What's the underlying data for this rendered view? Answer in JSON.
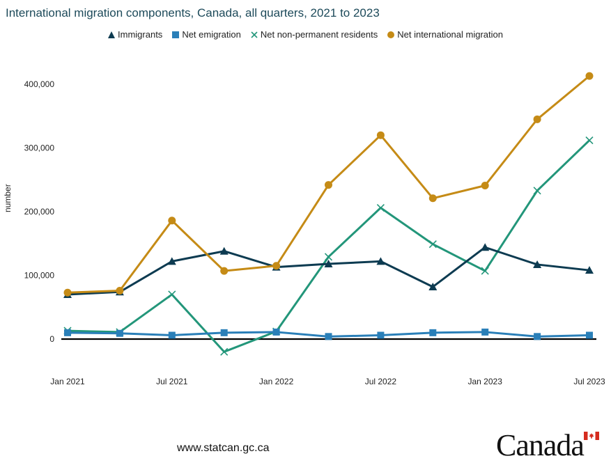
{
  "title": "International migration components, Canada, all quarters, 2021 to 2023",
  "footer": {
    "url": "www.statcan.gc.ca",
    "wordmark": "Canada"
  },
  "chart_data": {
    "type": "line",
    "title": "International migration components, Canada, all quarters, 2021 to 2023",
    "ylabel": "number",
    "xlabel": "",
    "ylim": [
      -30000,
      450000
    ],
    "yticks": [
      0,
      100000,
      200000,
      300000,
      400000
    ],
    "ytick_labels": [
      "0",
      "100,000",
      "200,000",
      "300,000",
      "400,000"
    ],
    "categories": [
      "Jan 2021",
      "Apr 2021",
      "Jul 2021",
      "Oct 2021",
      "Jan 2022",
      "Apr 2022",
      "Jul 2022",
      "Oct 2022",
      "Jan 2023",
      "Apr 2023",
      "Jul 2023"
    ],
    "xtick_labels": [
      "Jan 2021",
      "",
      "Jul 2021",
      "",
      "Jan 2022",
      "",
      "Jul 2022",
      "",
      "Jan 2023",
      "",
      "Jul 2023"
    ],
    "legend_position": "top",
    "grid": false,
    "series": [
      {
        "name": "Immigrants",
        "color": "#0d3b51",
        "marker": "triangle",
        "values": [
          70000,
          74000,
          122000,
          138000,
          113000,
          118000,
          122000,
          82000,
          144000,
          117000,
          108000
        ]
      },
      {
        "name": "Net emigration",
        "color": "#2a7fb8",
        "marker": "square",
        "values": [
          10000,
          9000,
          6000,
          10000,
          11000,
          4000,
          6000,
          10000,
          11000,
          4000,
          6000
        ]
      },
      {
        "name": "Net non-permanent residents",
        "color": "#23967a",
        "marker": "x",
        "values": [
          13000,
          11000,
          70000,
          -20000,
          12000,
          129000,
          206000,
          149000,
          107000,
          233000,
          312000
        ]
      },
      {
        "name": "Net international migration",
        "color": "#c58b16",
        "marker": "circle",
        "values": [
          73000,
          76000,
          186000,
          107000,
          115000,
          242000,
          320000,
          221000,
          241000,
          345000,
          413000
        ]
      }
    ]
  }
}
